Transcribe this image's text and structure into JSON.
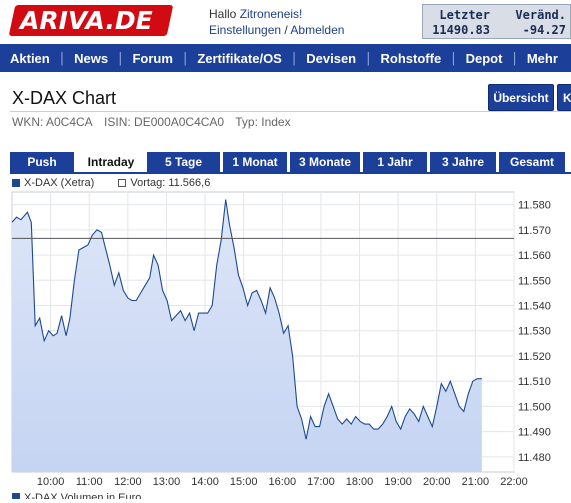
{
  "header": {
    "logo": "ARIVA.DE",
    "greeting_prefix": "Hallo ",
    "user": "Zitroneneis!",
    "settings_link": "Einstellungen",
    "separator": " / ",
    "logout_link": "Abmelden",
    "ticker": {
      "label_last": "Letzter",
      "value_last": "11490.83",
      "label_change": "Veränd.",
      "value_change": "-94.27"
    }
  },
  "nav": {
    "items": [
      "Aktien",
      "News",
      "Forum",
      "Zertifikate/OS",
      "Devisen",
      "Rohstoffe",
      "Depot",
      "Mehr"
    ]
  },
  "page": {
    "title": "X-DAX Chart",
    "button_overview": "Übersicht",
    "button_k": "K",
    "wkn": "WKN: A0C4CA",
    "isin": "ISIN: DE000A0C4CA0",
    "type": "Typ: Index"
  },
  "tabs": {
    "items": [
      "Push",
      "Intraday",
      "5 Tage",
      "1 Monat",
      "3 Monate",
      "1 Jahr",
      "3 Jahre",
      "Gesamt"
    ],
    "active": "Intraday"
  },
  "legend": {
    "series_label": "X-DAX (Xetra)",
    "previous_close_label": "Vortag: 11.566,6"
  },
  "footer_hint": "X-DAX Volumen in Euro",
  "chart_data": {
    "type": "area",
    "series": [
      {
        "name": "X-DAX (Xetra)",
        "points": [
          [
            "09:00",
            11573.0
          ],
          [
            "09:07",
            11575.0
          ],
          [
            "09:14",
            11574.0
          ],
          [
            "09:24",
            11577.0
          ],
          [
            "09:30",
            11573.0
          ],
          [
            "09:36",
            11532.0
          ],
          [
            "09:43",
            11535.0
          ],
          [
            "09:50",
            11526.0
          ],
          [
            "09:57",
            11530.0
          ],
          [
            "10:04",
            11528.0
          ],
          [
            "10:10",
            11529.0
          ],
          [
            "10:17",
            11536.0
          ],
          [
            "10:24",
            11528.0
          ],
          [
            "10:30",
            11535.0
          ],
          [
            "10:37",
            11550.0
          ],
          [
            "10:44",
            11562.0
          ],
          [
            "10:51",
            11563.0
          ],
          [
            "10:58",
            11564.0
          ],
          [
            "11:05",
            11568.0
          ],
          [
            "11:12",
            11570.0
          ],
          [
            "11:19",
            11569.0
          ],
          [
            "11:25",
            11563.0
          ],
          [
            "11:32",
            11556.0
          ],
          [
            "11:39",
            11548.0
          ],
          [
            "11:46",
            11553.0
          ],
          [
            "11:53",
            11546.0
          ],
          [
            "12:00",
            11543.0
          ],
          [
            "12:06",
            11542.0
          ],
          [
            "12:13",
            11542.0
          ],
          [
            "12:20",
            11545.0
          ],
          [
            "12:27",
            11548.0
          ],
          [
            "12:34",
            11551.0
          ],
          [
            "12:40",
            11560.0
          ],
          [
            "12:47",
            11556.0
          ],
          [
            "12:54",
            11546.0
          ],
          [
            "13:01",
            11542.0
          ],
          [
            "13:08",
            11534.0
          ],
          [
            "13:15",
            11536.0
          ],
          [
            "13:22",
            11538.0
          ],
          [
            "13:29",
            11534.0
          ],
          [
            "13:36",
            11537.0
          ],
          [
            "13:43",
            11530.0
          ],
          [
            "13:50",
            11537.0
          ],
          [
            "13:57",
            11537.0
          ],
          [
            "14:04",
            11537.0
          ],
          [
            "14:11",
            11540.0
          ],
          [
            "14:18",
            11556.0
          ],
          [
            "14:25",
            11566.0
          ],
          [
            "14:32",
            11582.0
          ],
          [
            "14:38",
            11572.0
          ],
          [
            "14:45",
            11563.0
          ],
          [
            "14:52",
            11552.0
          ],
          [
            "14:59",
            11547.0
          ],
          [
            "15:06",
            11540.0
          ],
          [
            "15:13",
            11545.0
          ],
          [
            "15:20",
            11546.0
          ],
          [
            "15:27",
            11542.0
          ],
          [
            "15:34",
            11537.0
          ],
          [
            "15:41",
            11547.0
          ],
          [
            "15:48",
            11543.0
          ],
          [
            "15:55",
            11537.0
          ],
          [
            "16:02",
            11529.0
          ],
          [
            "16:09",
            11532.0
          ],
          [
            "16:16",
            11520.0
          ],
          [
            "16:23",
            11500.0
          ],
          [
            "16:30",
            11495.0
          ],
          [
            "16:37",
            11487.0
          ],
          [
            "16:44",
            11496.0
          ],
          [
            "16:51",
            11492.0
          ],
          [
            "16:58",
            11492.0
          ],
          [
            "17:05",
            11500.0
          ],
          [
            "17:12",
            11505.0
          ],
          [
            "17:19",
            11500.0
          ],
          [
            "17:26",
            11495.0
          ],
          [
            "17:33",
            11493.0
          ],
          [
            "17:40",
            11495.0
          ],
          [
            "17:47",
            11493.0
          ],
          [
            "17:54",
            11496.0
          ],
          [
            "18:01",
            11494.0
          ],
          [
            "18:08",
            11493.0
          ],
          [
            "18:15",
            11493.0
          ],
          [
            "18:22",
            11491.0
          ],
          [
            "18:29",
            11491.0
          ],
          [
            "18:36",
            11493.0
          ],
          [
            "18:43",
            11496.0
          ],
          [
            "18:50",
            11500.0
          ],
          [
            "18:57",
            11494.0
          ],
          [
            "19:04",
            11491.0
          ],
          [
            "19:11",
            11496.0
          ],
          [
            "19:18",
            11499.0
          ],
          [
            "19:25",
            11497.0
          ],
          [
            "19:32",
            11494.0
          ],
          [
            "19:39",
            11500.0
          ],
          [
            "19:46",
            11496.0
          ],
          [
            "19:53",
            11492.0
          ],
          [
            "20:00",
            11500.0
          ],
          [
            "20:07",
            11509.0
          ],
          [
            "20:14",
            11506.0
          ],
          [
            "20:21",
            11510.0
          ],
          [
            "20:28",
            11505.0
          ],
          [
            "20:35",
            11500.0
          ],
          [
            "20:42",
            11498.0
          ],
          [
            "20:49",
            11505.0
          ],
          [
            "20:56",
            11510.0
          ],
          [
            "21:03",
            11511.0
          ],
          [
            "21:10",
            11511.0
          ]
        ]
      }
    ],
    "reference_line": {
      "label": "Vortag",
      "value": 11566.6
    },
    "x": {
      "start": "09:00",
      "end": "22:00",
      "ticks": [
        "10:00",
        "11:00",
        "12:00",
        "13:00",
        "14:00",
        "15:00",
        "16:00",
        "17:00",
        "18:00",
        "19:00",
        "20:00",
        "21:00",
        "22:00"
      ]
    },
    "y": {
      "ylim": [
        11474,
        11585
      ],
      "ticks": [
        11480,
        11490,
        11500,
        11510,
        11520,
        11530,
        11540,
        11550,
        11560,
        11570,
        11580
      ]
    },
    "y_tick_labels": [
      "11.480",
      "11.490",
      "11.500",
      "11.510",
      "11.520",
      "11.530",
      "11.540",
      "11.550",
      "11.560",
      "11.570",
      "11.580"
    ],
    "grid": true,
    "colors": {
      "line": "#1c4a8f",
      "fill": "#c5d4f2",
      "reference": "#555555"
    }
  }
}
